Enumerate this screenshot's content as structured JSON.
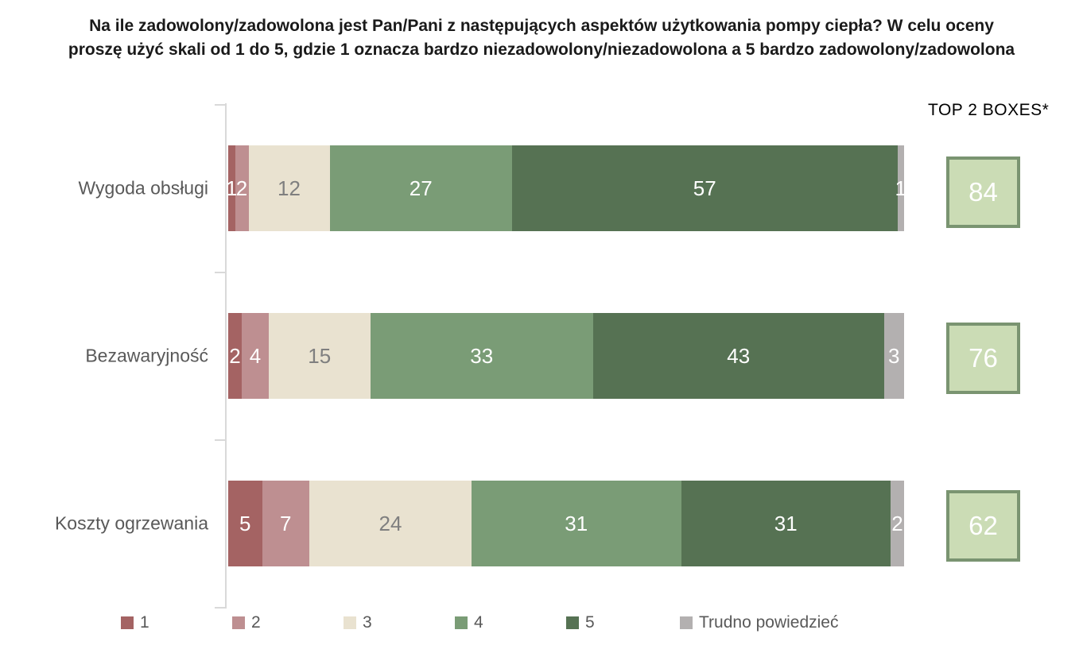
{
  "title": {
    "lines": [
      "Na ile zadowolony/zadowolona jest Pan/Pani z następujących aspektów użytkowania pompy ciepła? W celu oceny",
      "proszę użyć skali od 1 do 5, gdzie 1 oznacza bardzo niezadowolony/niezadowolona a 5 bardzo zadowolony/zadowolona"
    ]
  },
  "top2": {
    "header": "TOP 2 BOXES*",
    "values": [
      84,
      76,
      62
    ],
    "box_fill": "#CBDCB5",
    "box_border": "#7A9471",
    "value_color": "#FFFFFF"
  },
  "axis_color": "#D9D9D9",
  "category_label_color": "#595959",
  "chart_data": {
    "type": "bar",
    "orientation": "horizontal_stacked",
    "unit": "percent",
    "xlim": [
      0,
      100
    ],
    "grid": false,
    "legend_position": "bottom",
    "categories": [
      "Wygoda obsługi",
      "Bezawaryjność",
      "Koszty ogrzewania"
    ],
    "series": [
      {
        "name": "1",
        "color": "#A46363",
        "label_color": "#FFFFFF",
        "values": [
          1,
          2,
          5
        ]
      },
      {
        "name": "2",
        "color": "#BE8F91",
        "label_color": "#FFFFFF",
        "values": [
          2,
          4,
          7
        ]
      },
      {
        "name": "3",
        "color": "#E9E2D0",
        "label_color": "#7F7F7F",
        "values": [
          12,
          15,
          24
        ]
      },
      {
        "name": "4",
        "color": "#7A9C76",
        "label_color": "#FFFFFF",
        "values": [
          27,
          33,
          31
        ]
      },
      {
        "name": "5",
        "color": "#567253",
        "label_color": "#FFFFFF",
        "values": [
          57,
          43,
          31
        ]
      },
      {
        "name": "Trudno powiedzieć",
        "color": "#B3B0B0",
        "label_color": "#FFFFFF",
        "values": [
          1,
          3,
          2
        ]
      }
    ],
    "top2_boxes": [
      84,
      76,
      62
    ]
  }
}
